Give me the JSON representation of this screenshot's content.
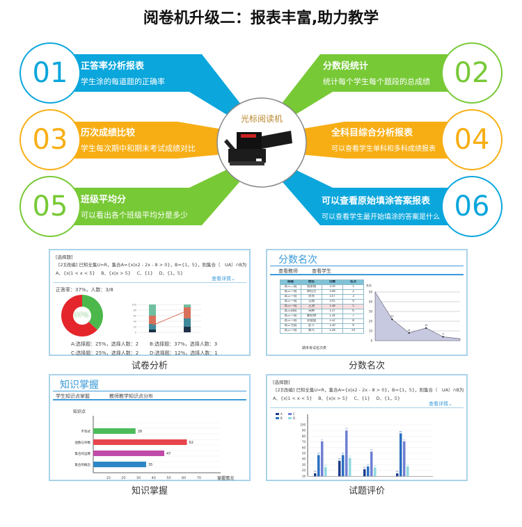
{
  "title": "阅卷机升级二：报表丰富,助力教学",
  "center": {
    "label": "光标阅读机",
    "device": "optical-mark-reader-image"
  },
  "features": [
    {
      "num": "01",
      "heading": "正答率分析报表",
      "desc": "学生涂的每道题的正确率",
      "color": "#0aa6dc"
    },
    {
      "num": "02",
      "heading": "分数段统计",
      "desc": "统计每个学生每个题段的总成绩",
      "color": "#77c936"
    },
    {
      "num": "03",
      "heading": "历次成绩比较",
      "desc": "学生每次期中和期末考试成绩对比",
      "color": "#f7ae14"
    },
    {
      "num": "04",
      "heading": "全科目综合分析报表",
      "desc": "可以查看学生单科和多科成绩报表",
      "color": "#f7ae14"
    },
    {
      "num": "05",
      "heading": "班级平均分",
      "desc": "可以看出各个班级平均分是多少",
      "color": "#77c936"
    },
    {
      "num": "06",
      "heading": "可以查看原始填涂答案报表",
      "desc": "可以查看学生最开始填涂的答案是什么",
      "color": "#0aa6dc"
    }
  ],
  "question": {
    "type": "[选择题]",
    "text": "[2][改编] 已知全集U=R，集合A={x|x2 - 2x - 8 > 0}，B={1，5}，则集合（　UA）∩B为",
    "options": "A、{x|1 < x < 5}　 B、{x|x > 5}　 C、{1}　 D、{1，5}",
    "detail_link": "查看详情⌄"
  },
  "panels": {
    "exam_analysis": {
      "caption": "试卷分析",
      "accuracy": "正答率：37%，人数：3/8",
      "donut_percent": 37,
      "donut_label": "37%",
      "option_stats": [
        "A:选择题：25%，选择人数：2",
        "B:选择题：37%，选择人数：3",
        "C:选择题：25%，选择人数：2",
        "D:选择题：12%，选择人数：1"
      ],
      "mini_chart": {
        "y_ticks": [
          0,
          20,
          40,
          60,
          80,
          100
        ],
        "stacks": [
          [
            10,
            20,
            30,
            40
          ],
          [
            20,
            30,
            40,
            10
          ]
        ],
        "line": [
          25,
          78
        ],
        "colors": [
          "#1f3348",
          "#3f8a9a",
          "#d9705a",
          "#6fbfa0"
        ]
      }
    },
    "score_rank": {
      "caption": "分数名次",
      "title": "分数名次",
      "tabs": [
        "查看教师",
        "查看学生"
      ],
      "table": {
        "headers": [
          "班级",
          "姓名",
          "分数",
          "名次"
        ],
        "rows": [
          [
            "高三二班",
            "张丽丽",
            "150",
            "1"
          ],
          [
            "高三一班",
            "郭旺元",
            "148",
            "2"
          ],
          [
            "高三一班",
            "赤赤",
            "147",
            "3"
          ],
          [
            "高三一班",
            "马旭",
            "145",
            "4"
          ],
          [
            "高三一班",
            "王涵",
            "138",
            "5"
          ],
          [
            "高三四班",
            "宋腾",
            "137",
            "6"
          ],
          [
            "高三一班",
            "秦结明",
            "134",
            "7"
          ],
          [
            "高三一班",
            "李猛猛",
            "132",
            "8"
          ],
          [
            "高三七班",
            "彭卜",
            "130",
            "9"
          ],
          [
            "高三一班",
            "那凡",
            "128",
            "10"
          ]
        ],
        "highlight_row": 4,
        "caption": "期末考试名次表"
      },
      "area_chart": {
        "ylabel": "名次",
        "y_ticks": [
          0,
          10,
          20,
          30,
          40,
          50
        ],
        "values": [
          50,
          22,
          8,
          13,
          4,
          2
        ],
        "point_labels": [
          "",
          "22",
          "8",
          "13",
          "4",
          ""
        ]
      }
    },
    "knowledge": {
      "caption": "知识掌握",
      "title": "知识掌握",
      "tabs": [
        "学生知识点掌握",
        "教师教学知识点分布"
      ],
      "chart": {
        "type": "bar",
        "orientation": "horizontal",
        "ylabel": "知识点",
        "xlabel": "掌握情况",
        "x_ticks": [
          10,
          20,
          30,
          40,
          50,
          60,
          70
        ],
        "categories": [
          "不等式",
          "函数与导数",
          "集合的运算",
          "集合的概念"
        ],
        "values": [
          28,
          62,
          47,
          35
        ],
        "colors": [
          "#4cbc5a",
          "#e8464e",
          "#c04aa8",
          "#2f86c6"
        ]
      }
    },
    "question_eval": {
      "caption": "试题评价",
      "chart": {
        "type": "bar",
        "legend": [
          "A",
          "B",
          "C",
          "D"
        ],
        "y_ticks": [
          10,
          20,
          30,
          40,
          50,
          60,
          70,
          80,
          90,
          100
        ],
        "series": [
          {
            "name": "A",
            "values": [
              15,
              37,
              22,
              15
            ]
          },
          {
            "name": "B",
            "values": [
              47,
              47,
              27,
              85
            ]
          },
          {
            "name": "C",
            "values": [
              71,
              90,
              53,
              71
            ]
          },
          {
            "name": "D",
            "values": [
              26,
              42,
              25,
              27
            ]
          }
        ],
        "colors": [
          "#1d3c8c",
          "#2a6fc0",
          "#6f7fd2",
          "#8fd8de"
        ]
      }
    }
  }
}
